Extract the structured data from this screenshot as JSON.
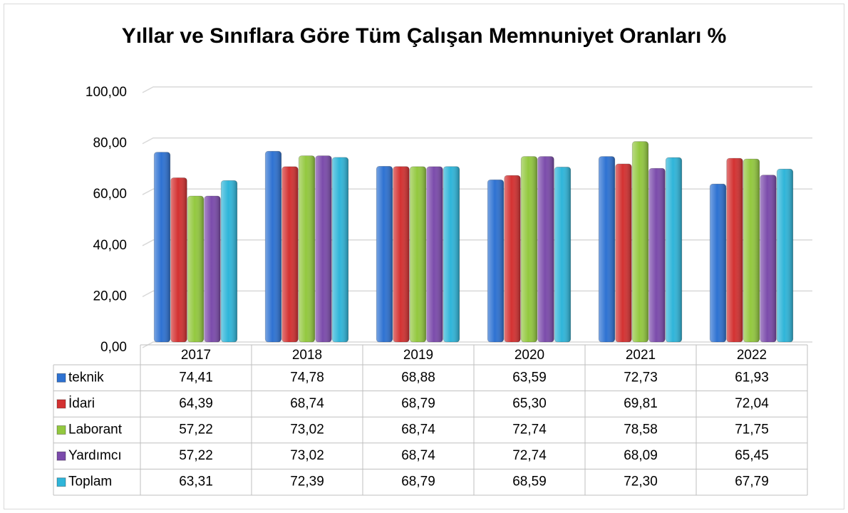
{
  "chart_data": {
    "type": "bar",
    "title": "Yıllar ve Sınıflara Göre Tüm Çalışan Memnuniyet Oranları %",
    "categories": [
      "2017",
      "2018",
      "2019",
      "2020",
      "2021",
      "2022"
    ],
    "series": [
      {
        "name": "teknik",
        "color": "#2e72d2",
        "values": [
          74.41,
          74.78,
          68.88,
          63.59,
          72.73,
          61.93
        ],
        "value_labels": [
          "74,41",
          "74,78",
          "68,88",
          "63,59",
          "72,73",
          "61,93"
        ]
      },
      {
        "name": "İdari",
        "color": "#d33131",
        "values": [
          64.39,
          68.74,
          68.79,
          65.3,
          69.81,
          72.04
        ],
        "value_labels": [
          "64,39",
          "68,74",
          "68,79",
          "65,30",
          "69,81",
          "72,04"
        ]
      },
      {
        "name": "Laborant",
        "color": "#93c83f",
        "values": [
          57.22,
          73.02,
          68.74,
          72.74,
          78.58,
          71.75
        ],
        "value_labels": [
          "57,22",
          "73,02",
          "68,74",
          "72,74",
          "78,58",
          "71,75"
        ]
      },
      {
        "name": "Yardımcı",
        "color": "#7b4bab",
        "values": [
          57.22,
          73.02,
          68.74,
          72.74,
          68.09,
          65.45
        ],
        "value_labels": [
          "57,22",
          "73,02",
          "68,74",
          "72,74",
          "68,09",
          "65,45"
        ]
      },
      {
        "name": "Toplam",
        "color": "#2fb5d9",
        "values": [
          63.31,
          72.39,
          68.79,
          68.59,
          72.3,
          67.79
        ],
        "value_labels": [
          "63,31",
          "72,39",
          "68,79",
          "68,59",
          "72,30",
          "67,79"
        ]
      }
    ],
    "ylim": [
      0,
      100
    ],
    "yticks": [
      {
        "value": 0,
        "label": "0,00"
      },
      {
        "value": 20,
        "label": "20,00"
      },
      {
        "value": 40,
        "label": "40,00"
      },
      {
        "value": 60,
        "label": "60,00"
      },
      {
        "value": 80,
        "label": "80,00"
      },
      {
        "value": 100,
        "label": "100,00"
      }
    ],
    "grid": true
  }
}
